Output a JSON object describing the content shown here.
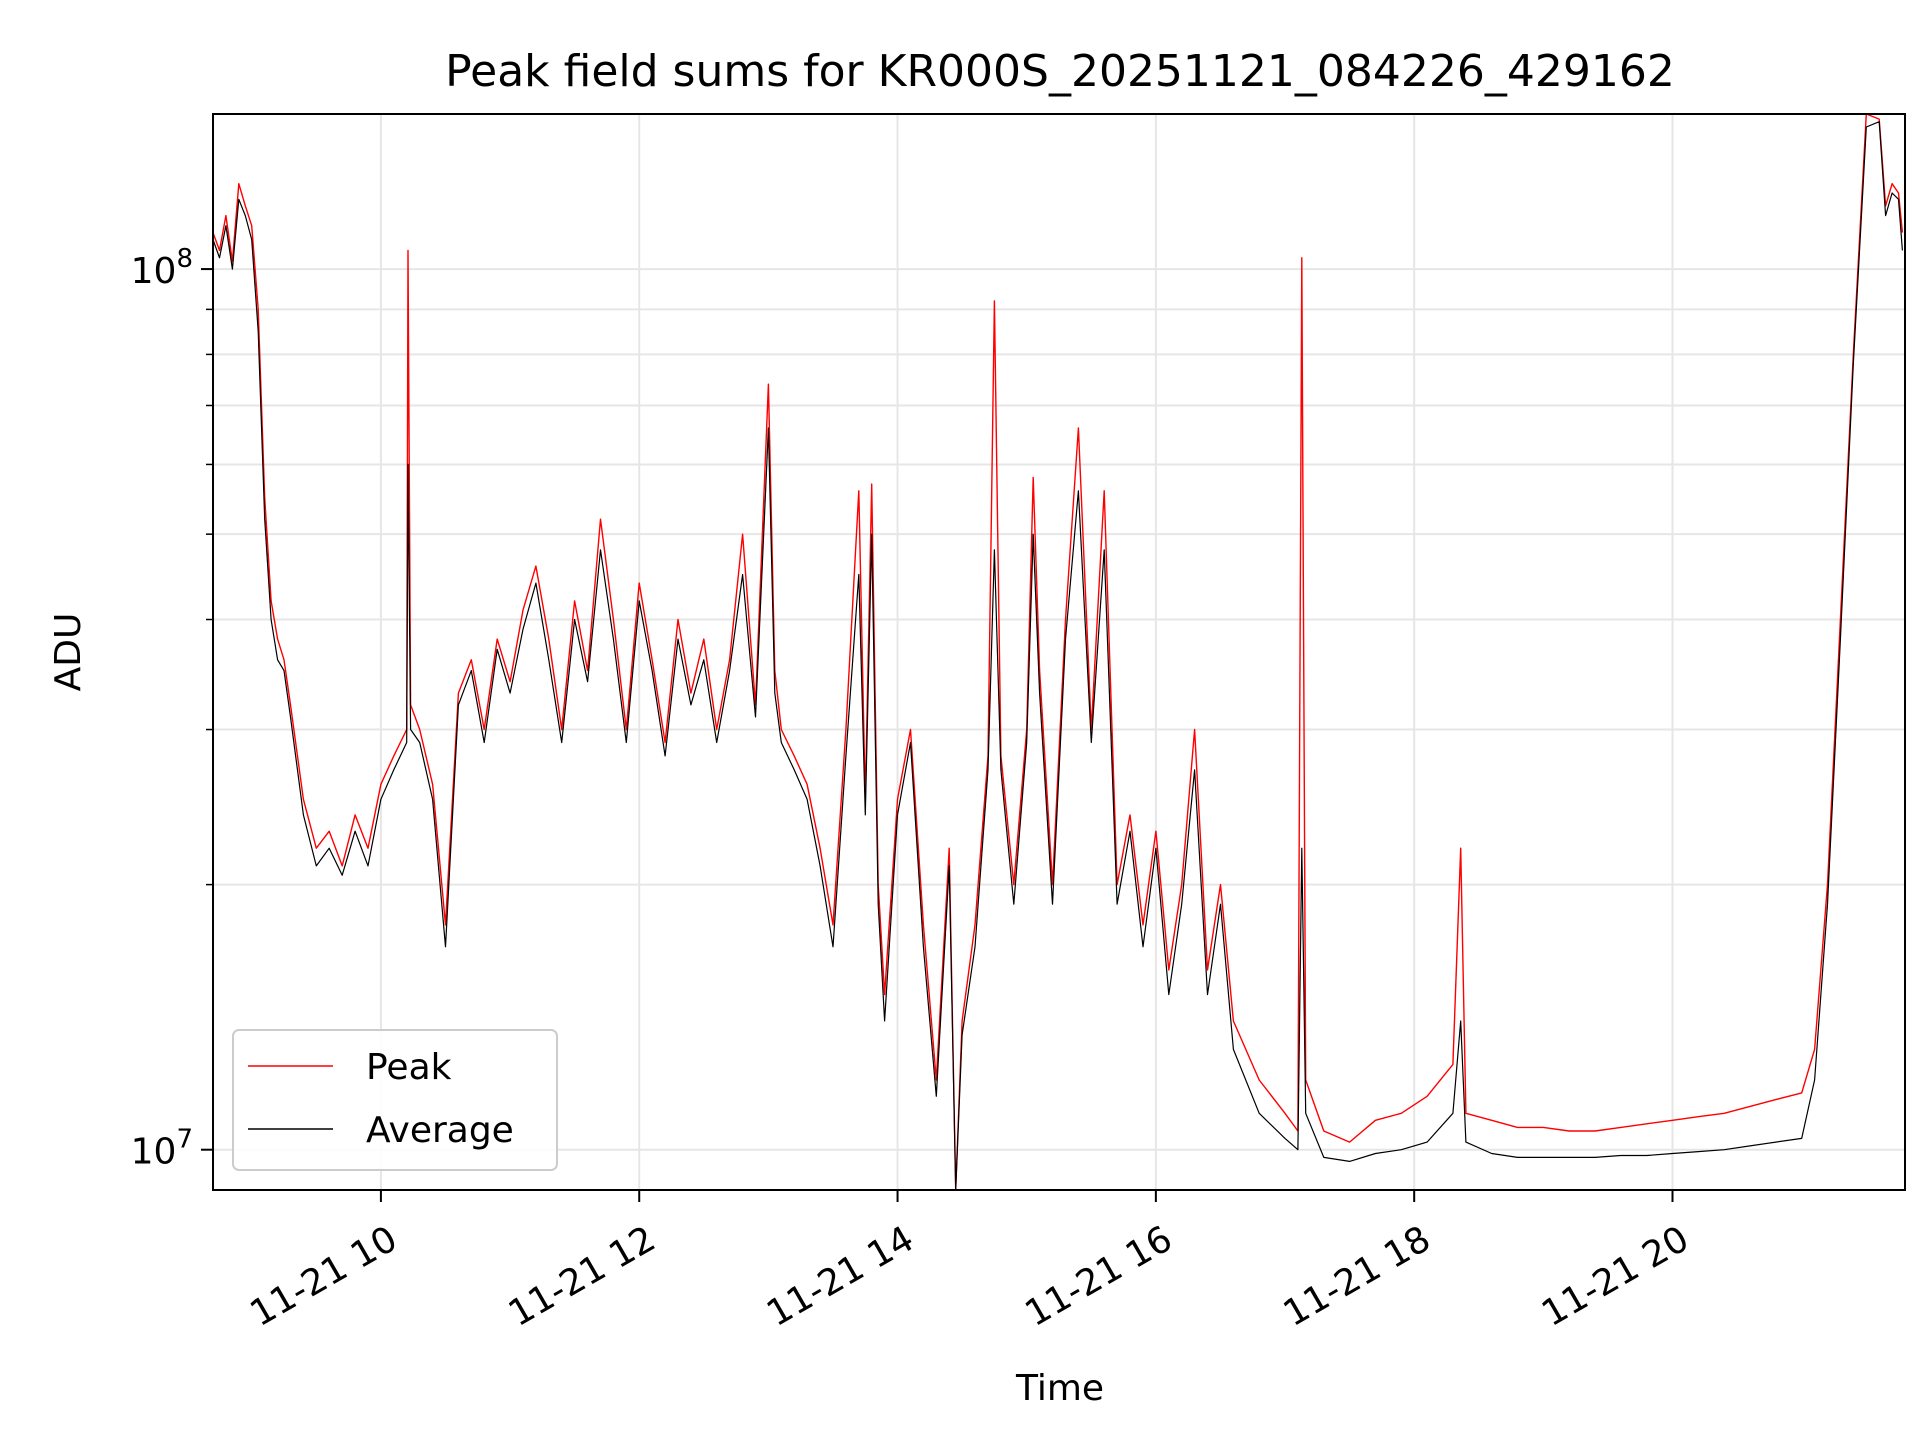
{
  "chart_data": {
    "type": "line",
    "title": "Peak field sums for KR000S_20251121_084226_429162",
    "xlabel": "Time",
    "ylabel": "ADU",
    "yscale": "log",
    "ylim": [
      9000000,
      150000000
    ],
    "xlim": [
      8.7,
      21.8
    ],
    "x_unit": "hour of day, 2025-11-21",
    "grid": true,
    "legend_position": "bottom-left",
    "x_ticks": [
      {
        "value": 10,
        "label": "11-21 10"
      },
      {
        "value": 12,
        "label": "11-21 12"
      },
      {
        "value": 14,
        "label": "11-21 14"
      },
      {
        "value": 16,
        "label": "11-21 16"
      },
      {
        "value": 18,
        "label": "11-21 18"
      },
      {
        "value": 20,
        "label": "11-21 20"
      }
    ],
    "y_major_ticks": [
      {
        "value": 10000000,
        "base": "10",
        "exp": "7"
      },
      {
        "value": 100000000,
        "base": "10",
        "exp": "8"
      }
    ],
    "y_minor_ticks": [
      20000000,
      30000000,
      40000000,
      50000000,
      60000000,
      70000000,
      80000000,
      90000000
    ],
    "series": [
      {
        "name": "Peak",
        "color": "#ff0000",
        "points": [
          [
            8.7,
            110000000
          ],
          [
            8.75,
            105000000
          ],
          [
            8.8,
            115000000
          ],
          [
            8.85,
            102000000
          ],
          [
            8.9,
            125000000
          ],
          [
            8.95,
            118000000
          ],
          [
            9.0,
            112000000
          ],
          [
            9.05,
            90000000
          ],
          [
            9.1,
            55000000
          ],
          [
            9.15,
            42000000
          ],
          [
            9.2,
            38000000
          ],
          [
            9.25,
            36000000
          ],
          [
            9.3,
            32000000
          ],
          [
            9.4,
            25000000
          ],
          [
            9.5,
            22000000
          ],
          [
            9.6,
            23000000
          ],
          [
            9.7,
            21000000
          ],
          [
            9.8,
            24000000
          ],
          [
            9.9,
            22000000
          ],
          [
            10.0,
            26000000
          ],
          [
            10.1,
            28000000
          ],
          [
            10.2,
            30000000
          ],
          [
            10.21,
            105000000
          ],
          [
            10.23,
            32000000
          ],
          [
            10.3,
            30000000
          ],
          [
            10.4,
            26000000
          ],
          [
            10.5,
            18000000
          ],
          [
            10.6,
            33000000
          ],
          [
            10.7,
            36000000
          ],
          [
            10.8,
            30000000
          ],
          [
            10.9,
            38000000
          ],
          [
            11.0,
            34000000
          ],
          [
            11.1,
            41000000
          ],
          [
            11.2,
            46000000
          ],
          [
            11.3,
            38000000
          ],
          [
            11.4,
            30000000
          ],
          [
            11.5,
            42000000
          ],
          [
            11.6,
            35000000
          ],
          [
            11.7,
            52000000
          ],
          [
            11.8,
            40000000
          ],
          [
            11.9,
            30000000
          ],
          [
            12.0,
            44000000
          ],
          [
            12.1,
            36000000
          ],
          [
            12.2,
            29000000
          ],
          [
            12.3,
            40000000
          ],
          [
            12.4,
            33000000
          ],
          [
            12.5,
            38000000
          ],
          [
            12.6,
            30000000
          ],
          [
            12.7,
            36000000
          ],
          [
            12.8,
            50000000
          ],
          [
            12.9,
            32000000
          ],
          [
            13.0,
            74000000
          ],
          [
            13.05,
            35000000
          ],
          [
            13.1,
            30000000
          ],
          [
            13.2,
            28000000
          ],
          [
            13.3,
            26000000
          ],
          [
            13.4,
            22000000
          ],
          [
            13.5,
            18000000
          ],
          [
            13.6,
            30000000
          ],
          [
            13.7,
            56000000
          ],
          [
            13.75,
            25000000
          ],
          [
            13.8,
            57000000
          ],
          [
            13.85,
            20000000
          ],
          [
            13.9,
            15000000
          ],
          [
            14.0,
            25000000
          ],
          [
            14.1,
            30000000
          ],
          [
            14.2,
            18000000
          ],
          [
            14.3,
            12000000
          ],
          [
            14.4,
            22000000
          ],
          [
            14.45,
            9000000
          ],
          [
            14.5,
            14000000
          ],
          [
            14.6,
            18000000
          ],
          [
            14.7,
            28000000
          ],
          [
            14.75,
            92000000
          ],
          [
            14.8,
            28000000
          ],
          [
            14.9,
            20000000
          ],
          [
            15.0,
            30000000
          ],
          [
            15.05,
            58000000
          ],
          [
            15.1,
            35000000
          ],
          [
            15.2,
            20000000
          ],
          [
            15.3,
            40000000
          ],
          [
            15.4,
            66000000
          ],
          [
            15.5,
            30000000
          ],
          [
            15.6,
            56000000
          ],
          [
            15.7,
            20000000
          ],
          [
            15.8,
            24000000
          ],
          [
            15.9,
            18000000
          ],
          [
            16.0,
            23000000
          ],
          [
            16.1,
            16000000
          ],
          [
            16.2,
            20000000
          ],
          [
            16.3,
            30000000
          ],
          [
            16.4,
            16000000
          ],
          [
            16.5,
            20000000
          ],
          [
            16.6,
            14000000
          ],
          [
            16.8,
            12000000
          ],
          [
            17.0,
            11000000
          ],
          [
            17.1,
            10500000
          ],
          [
            17.13,
            103000000
          ],
          [
            17.16,
            12000000
          ],
          [
            17.3,
            10500000
          ],
          [
            17.5,
            10200000
          ],
          [
            17.7,
            10800000
          ],
          [
            17.9,
            11000000
          ],
          [
            18.1,
            11500000
          ],
          [
            18.3,
            12500000
          ],
          [
            18.36,
            22000000
          ],
          [
            18.4,
            11000000
          ],
          [
            18.6,
            10800000
          ],
          [
            18.8,
            10600000
          ],
          [
            19.0,
            10600000
          ],
          [
            19.2,
            10500000
          ],
          [
            19.4,
            10500000
          ],
          [
            19.6,
            10600000
          ],
          [
            19.8,
            10700000
          ],
          [
            20.0,
            10800000
          ],
          [
            20.2,
            10900000
          ],
          [
            20.4,
            11000000
          ],
          [
            20.6,
            11200000
          ],
          [
            20.8,
            11400000
          ],
          [
            21.0,
            11600000
          ],
          [
            21.1,
            13000000
          ],
          [
            21.2,
            20000000
          ],
          [
            21.3,
            40000000
          ],
          [
            21.4,
            80000000
          ],
          [
            21.5,
            150000000
          ],
          [
            21.6,
            148000000
          ],
          [
            21.65,
            118000000
          ],
          [
            21.7,
            125000000
          ],
          [
            21.75,
            122000000
          ],
          [
            21.78,
            110000000
          ]
        ]
      },
      {
        "name": "Average",
        "color": "#000000",
        "points": [
          [
            8.7,
            108000000
          ],
          [
            8.75,
            103000000
          ],
          [
            8.8,
            112000000
          ],
          [
            8.85,
            100000000
          ],
          [
            8.9,
            120000000
          ],
          [
            8.95,
            115000000
          ],
          [
            9.0,
            108000000
          ],
          [
            9.05,
            85000000
          ],
          [
            9.1,
            52000000
          ],
          [
            9.15,
            40000000
          ],
          [
            9.2,
            36000000
          ],
          [
            9.25,
            35000000
          ],
          [
            9.3,
            31000000
          ],
          [
            9.4,
            24000000
          ],
          [
            9.5,
            21000000
          ],
          [
            9.6,
            22000000
          ],
          [
            9.7,
            20500000
          ],
          [
            9.8,
            23000000
          ],
          [
            9.9,
            21000000
          ],
          [
            10.0,
            25000000
          ],
          [
            10.1,
            27000000
          ],
          [
            10.2,
            29000000
          ],
          [
            10.21,
            60000000
          ],
          [
            10.23,
            30000000
          ],
          [
            10.3,
            29000000
          ],
          [
            10.4,
            25000000
          ],
          [
            10.5,
            17000000
          ],
          [
            10.6,
            32000000
          ],
          [
            10.7,
            35000000
          ],
          [
            10.8,
            29000000
          ],
          [
            10.9,
            37000000
          ],
          [
            11.0,
            33000000
          ],
          [
            11.1,
            39000000
          ],
          [
            11.2,
            44000000
          ],
          [
            11.3,
            36000000
          ],
          [
            11.4,
            29000000
          ],
          [
            11.5,
            40000000
          ],
          [
            11.6,
            34000000
          ],
          [
            11.7,
            48000000
          ],
          [
            11.8,
            38000000
          ],
          [
            11.9,
            29000000
          ],
          [
            12.0,
            42000000
          ],
          [
            12.1,
            35000000
          ],
          [
            12.2,
            28000000
          ],
          [
            12.3,
            38000000
          ],
          [
            12.4,
            32000000
          ],
          [
            12.5,
            36000000
          ],
          [
            12.6,
            29000000
          ],
          [
            12.7,
            35000000
          ],
          [
            12.8,
            45000000
          ],
          [
            12.9,
            31000000
          ],
          [
            13.0,
            66000000
          ],
          [
            13.05,
            33000000
          ],
          [
            13.1,
            29000000
          ],
          [
            13.2,
            27000000
          ],
          [
            13.3,
            25000000
          ],
          [
            13.4,
            21000000
          ],
          [
            13.5,
            17000000
          ],
          [
            13.6,
            28000000
          ],
          [
            13.7,
            45000000
          ],
          [
            13.75,
            24000000
          ],
          [
            13.8,
            50000000
          ],
          [
            13.85,
            19000000
          ],
          [
            13.9,
            14000000
          ],
          [
            14.0,
            24000000
          ],
          [
            14.1,
            29000000
          ],
          [
            14.2,
            17000000
          ],
          [
            14.3,
            11500000
          ],
          [
            14.4,
            21000000
          ],
          [
            14.45,
            9000000
          ],
          [
            14.5,
            13500000
          ],
          [
            14.6,
            17000000
          ],
          [
            14.7,
            27000000
          ],
          [
            14.75,
            48000000
          ],
          [
            14.8,
            27000000
          ],
          [
            14.9,
            19000000
          ],
          [
            15.0,
            29000000
          ],
          [
            15.05,
            50000000
          ],
          [
            15.1,
            33000000
          ],
          [
            15.2,
            19000000
          ],
          [
            15.3,
            38000000
          ],
          [
            15.4,
            56000000
          ],
          [
            15.5,
            29000000
          ],
          [
            15.6,
            48000000
          ],
          [
            15.7,
            19000000
          ],
          [
            15.8,
            23000000
          ],
          [
            15.9,
            17000000
          ],
          [
            16.0,
            22000000
          ],
          [
            16.1,
            15000000
          ],
          [
            16.2,
            19000000
          ],
          [
            16.3,
            27000000
          ],
          [
            16.4,
            15000000
          ],
          [
            16.5,
            19000000
          ],
          [
            16.6,
            13000000
          ],
          [
            16.8,
            11000000
          ],
          [
            17.0,
            10300000
          ],
          [
            17.1,
            10000000
          ],
          [
            17.13,
            22000000
          ],
          [
            17.16,
            11000000
          ],
          [
            17.3,
            9800000
          ],
          [
            17.5,
            9700000
          ],
          [
            17.7,
            9900000
          ],
          [
            17.9,
            10000000
          ],
          [
            18.1,
            10200000
          ],
          [
            18.3,
            11000000
          ],
          [
            18.36,
            14000000
          ],
          [
            18.4,
            10200000
          ],
          [
            18.6,
            9900000
          ],
          [
            18.8,
            9800000
          ],
          [
            19.0,
            9800000
          ],
          [
            19.2,
            9800000
          ],
          [
            19.4,
            9800000
          ],
          [
            19.6,
            9850000
          ],
          [
            19.8,
            9850000
          ],
          [
            20.0,
            9900000
          ],
          [
            20.2,
            9950000
          ],
          [
            20.4,
            10000000
          ],
          [
            20.6,
            10100000
          ],
          [
            20.8,
            10200000
          ],
          [
            21.0,
            10300000
          ],
          [
            21.1,
            12000000
          ],
          [
            21.2,
            19000000
          ],
          [
            21.3,
            38000000
          ],
          [
            21.4,
            78000000
          ],
          [
            21.5,
            145000000
          ],
          [
            21.6,
            147000000
          ],
          [
            21.65,
            115000000
          ],
          [
            21.7,
            122000000
          ],
          [
            21.75,
            120000000
          ],
          [
            21.78,
            105000000
          ]
        ]
      }
    ]
  }
}
